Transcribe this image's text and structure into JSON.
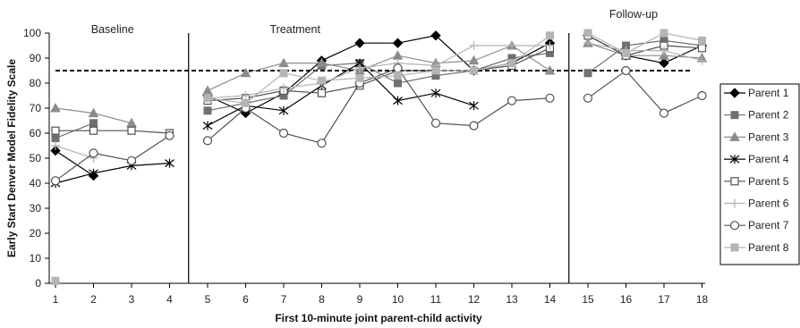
{
  "chart_data": {
    "type": "line",
    "title": "",
    "xlabel": "First 10-minute joint parent-child activity",
    "ylabel": "Early Start Denver Model Fidelity Scale",
    "x_ticks": [
      1,
      2,
      3,
      4,
      5,
      6,
      7,
      8,
      9,
      10,
      11,
      12,
      13,
      14,
      15,
      16,
      17,
      18
    ],
    "xlim": [
      1,
      18
    ],
    "ylim": [
      0,
      100
    ],
    "y_ticks": [
      0,
      10,
      20,
      30,
      40,
      50,
      60,
      70,
      80,
      90,
      100
    ],
    "reference_line": {
      "y": 85,
      "style": "dashed"
    },
    "phase_dividers": [
      4.5,
      14.5
    ],
    "phases": [
      {
        "label": "Baseline",
        "x_center": 2.5
      },
      {
        "label": "Treatment",
        "x_center": 7.3
      },
      {
        "label": "Follow-up",
        "x_center": 16.2
      }
    ],
    "legend_position": "right",
    "segments": [
      [
        1,
        4
      ],
      [
        5,
        14
      ],
      [
        15,
        18
      ]
    ],
    "series": [
      {
        "name": "Parent 1",
        "color": "#000000",
        "marker": "diamond-filled",
        "points": [
          [
            1,
            53
          ],
          [
            2,
            43
          ],
          [
            5,
            75
          ],
          [
            6,
            68
          ],
          [
            7,
            76
          ],
          [
            8,
            89
          ],
          [
            9,
            96
          ],
          [
            10,
            96
          ],
          [
            11,
            99
          ],
          [
            12,
            85
          ],
          [
            13,
            88
          ],
          [
            14,
            96
          ],
          [
            15,
            99
          ],
          [
            16,
            91
          ],
          [
            17,
            88
          ],
          [
            18,
            95
          ]
        ]
      },
      {
        "name": "Parent 2",
        "color": "#707070",
        "marker": "square-filled",
        "points": [
          [
            1,
            58
          ],
          [
            2,
            64
          ],
          [
            5,
            69
          ],
          [
            6,
            72
          ],
          [
            7,
            75
          ],
          [
            8,
            87
          ],
          [
            9,
            88
          ],
          [
            10,
            80
          ],
          [
            11,
            83
          ],
          [
            12,
            85
          ],
          [
            13,
            90
          ],
          [
            14,
            92
          ],
          [
            15,
            84
          ],
          [
            16,
            95
          ],
          [
            17,
            97
          ],
          [
            18,
            95
          ]
        ]
      },
      {
        "name": "Parent 3",
        "color": "#8c8c8c",
        "marker": "triangle-filled",
        "points": [
          [
            1,
            70
          ],
          [
            2,
            68
          ],
          [
            3,
            64
          ],
          [
            5,
            77
          ],
          [
            6,
            84
          ],
          [
            7,
            88
          ],
          [
            8,
            88
          ],
          [
            9,
            85
          ],
          [
            10,
            91
          ],
          [
            11,
            88
          ],
          [
            12,
            89
          ],
          [
            13,
            95
          ],
          [
            14,
            85
          ],
          [
            15,
            96
          ],
          [
            16,
            91
          ],
          [
            17,
            91
          ],
          [
            18,
            90
          ]
        ]
      },
      {
        "name": "Parent 4",
        "color": "#000000",
        "marker": "asterisk",
        "points": [
          [
            1,
            40
          ],
          [
            2,
            44
          ],
          [
            3,
            47
          ],
          [
            4,
            48
          ],
          [
            5,
            63
          ],
          [
            6,
            71
          ],
          [
            7,
            69
          ],
          [
            8,
            79
          ],
          [
            9,
            88
          ],
          [
            10,
            73
          ],
          [
            11,
            76
          ],
          [
            12,
            71
          ]
        ]
      },
      {
        "name": "Parent 5",
        "color": "#505050",
        "marker": "square-open",
        "points": [
          [
            1,
            61
          ],
          [
            2,
            61
          ],
          [
            3,
            61
          ],
          [
            4,
            60
          ],
          [
            5,
            73
          ],
          [
            6,
            74
          ],
          [
            7,
            77
          ],
          [
            8,
            76
          ],
          [
            9,
            79
          ],
          [
            10,
            85
          ],
          [
            11,
            85
          ],
          [
            12,
            85
          ],
          [
            13,
            87
          ],
          [
            14,
            94
          ],
          [
            15,
            99
          ],
          [
            16,
            91
          ],
          [
            17,
            95
          ],
          [
            18,
            94
          ]
        ]
      },
      {
        "name": "Parent 6",
        "color": "#b4b4b4",
        "marker": "plus",
        "points": [
          [
            1,
            55
          ],
          [
            2,
            50
          ],
          [
            5,
            74
          ],
          [
            6,
            75
          ],
          [
            7,
            78
          ],
          [
            8,
            80
          ],
          [
            9,
            86
          ],
          [
            10,
            88
          ],
          [
            11,
            87
          ],
          [
            12,
            95
          ],
          [
            13,
            95
          ],
          [
            14,
            95
          ],
          [
            15,
            96
          ],
          [
            16,
            93
          ],
          [
            17,
            93
          ],
          [
            18,
            89
          ]
        ]
      },
      {
        "name": "Parent 7",
        "color": "#505050",
        "marker": "circle-open",
        "points": [
          [
            1,
            41
          ],
          [
            2,
            52
          ],
          [
            3,
            49
          ],
          [
            4,
            59
          ],
          [
            5,
            57
          ],
          [
            6,
            70
          ],
          [
            7,
            60
          ],
          [
            8,
            56
          ],
          [
            9,
            80
          ],
          [
            10,
            86
          ],
          [
            11,
            64
          ],
          [
            12,
            63
          ],
          [
            13,
            73
          ],
          [
            14,
            74
          ],
          [
            15,
            74
          ],
          [
            16,
            85
          ],
          [
            17,
            68
          ],
          [
            18,
            75
          ]
        ]
      },
      {
        "name": "Parent 8",
        "color": "#b4b4b4",
        "marker": "square-filled",
        "points": [
          [
            1,
            1
          ],
          [
            5,
            74
          ],
          [
            6,
            72
          ],
          [
            7,
            84
          ],
          [
            8,
            81
          ],
          [
            9,
            82
          ],
          [
            10,
            83
          ],
          [
            11,
            85
          ],
          [
            12,
            85
          ],
          [
            13,
            88
          ],
          [
            14,
            99
          ],
          [
            15,
            100
          ],
          [
            16,
            92
          ],
          [
            17,
            100
          ],
          [
            18,
            97
          ]
        ]
      }
    ]
  }
}
